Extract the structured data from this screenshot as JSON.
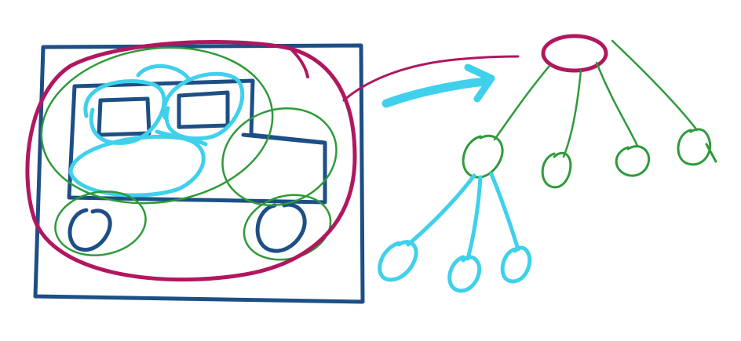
{
  "diagram": {
    "colors": {
      "frame": "#1d4f86",
      "root": "#b0175f",
      "parts": "#2e9a3a",
      "subparts": "#3fd0ec",
      "background": "#ffffff"
    },
    "icons": [
      "truck-icon",
      "arrow-icon",
      "tree-icon"
    ],
    "tree": {
      "root": {
        "children": 4
      },
      "first_child": {
        "children": 3
      }
    }
  }
}
